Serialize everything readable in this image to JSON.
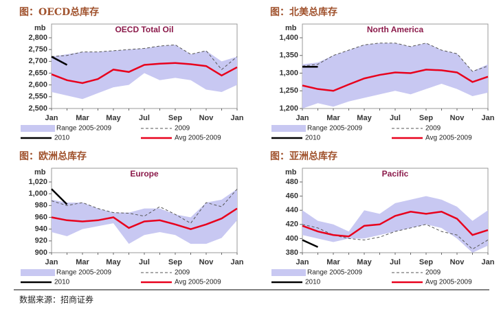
{
  "chart_data": [
    {
      "type": "line",
      "caption": "图：OECD总库存",
      "title": "OECD Total Oil",
      "ylabel": "mb",
      "categories": [
        "Jan",
        null,
        "Mar",
        null,
        "May",
        null,
        "Jul",
        null,
        "Sep",
        null,
        "Nov",
        null,
        "Jan"
      ],
      "ylim": [
        2500,
        2800
      ],
      "yticks": [
        {
          "value": 2500,
          "label": "2,500"
        },
        {
          "value": 2550,
          "label": "2,550"
        },
        {
          "value": 2600,
          "label": "2,600"
        },
        {
          "value": 2650,
          "label": "2,650"
        },
        {
          "value": 2700,
          "label": "2,700"
        },
        {
          "value": 2750,
          "label": "2,750"
        },
        {
          "value": 2800,
          "label": "2,800"
        }
      ],
      "range": {
        "name": "Range 2005-2009",
        "color": "#c8c8f2",
        "high": [
          2720,
          2730,
          2740,
          2740,
          2745,
          2750,
          2755,
          2765,
          2770,
          2730,
          2745,
          2700,
          2720
        ],
        "low": [
          2570,
          2555,
          2540,
          2565,
          2590,
          2600,
          2650,
          2620,
          2630,
          2620,
          2580,
          2570,
          2600
        ]
      },
      "series": [
        {
          "name": "2009",
          "color": "#555555",
          "style": "dashed",
          "values": [
            2720,
            2725,
            2740,
            2740,
            2745,
            2750,
            2755,
            2765,
            2770,
            2730,
            2745,
            2665,
            2720
          ]
        },
        {
          "name": "2010",
          "color": "#000000",
          "style": "solid",
          "values": [
            2720,
            2685,
            null,
            null,
            null,
            null,
            null,
            null,
            null,
            null,
            null,
            null,
            null
          ]
        },
        {
          "name": "Avg 2005-2009",
          "color": "#e8001c",
          "style": "solid",
          "values": [
            2645,
            2620,
            2608,
            2625,
            2665,
            2655,
            2685,
            2690,
            2693,
            2688,
            2680,
            2640,
            2675
          ]
        }
      ]
    },
    {
      "type": "line",
      "caption": "图：北美总库存",
      "title": "North America",
      "ylabel": "mb",
      "categories": [
        "Jan",
        null,
        "Mar",
        null,
        "May",
        null,
        "Jul",
        null,
        "Sep",
        null,
        "Nov",
        null,
        "Jan"
      ],
      "ylim": [
        1200,
        1400
      ],
      "yticks": [
        {
          "value": 1200,
          "label": "1,200"
        },
        {
          "value": 1250,
          "label": "1,250"
        },
        {
          "value": 1300,
          "label": "1,300"
        },
        {
          "value": 1350,
          "label": "1,350"
        },
        {
          "value": 1400,
          "label": "1,400"
        }
      ],
      "range": {
        "name": "Range 2005-2009",
        "color": "#c8c8f2",
        "high": [
          1325,
          1330,
          1350,
          1365,
          1380,
          1385,
          1385,
          1375,
          1385,
          1365,
          1355,
          1305,
          1325
        ],
        "low": [
          1200,
          1215,
          1205,
          1220,
          1230,
          1240,
          1250,
          1240,
          1255,
          1270,
          1255,
          1235,
          1245
        ]
      },
      "series": [
        {
          "name": "2009",
          "color": "#555555",
          "style": "dashed",
          "values": [
            1320,
            1325,
            1350,
            1365,
            1380,
            1385,
            1385,
            1375,
            1385,
            1365,
            1355,
            1305,
            1320
          ]
        },
        {
          "name": "2010",
          "color": "#000000",
          "style": "solid",
          "values": [
            1318,
            1318,
            null,
            null,
            null,
            null,
            null,
            null,
            null,
            null,
            null,
            null,
            null
          ]
        },
        {
          "name": "Avg 2005-2009",
          "color": "#e8001c",
          "style": "solid",
          "values": [
            1265,
            1255,
            1250,
            1268,
            1285,
            1295,
            1302,
            1300,
            1310,
            1308,
            1302,
            1275,
            1290
          ]
        }
      ]
    },
    {
      "type": "line",
      "caption": "图：欧洲总库存",
      "title": "Europe",
      "ylabel": "mb",
      "categories": [
        "Jan",
        null,
        "Mar",
        null,
        "May",
        null,
        "Jul",
        null,
        "Sep",
        null,
        "Nov",
        null,
        "Jan"
      ],
      "ylim": [
        900,
        1020
      ],
      "yticks": [
        900,
        920,
        940,
        960,
        980,
        {
          "value": 1000,
          "label": "1,000"
        },
        {
          "value": 1020,
          "label": "1,020"
        }
      ],
      "range": {
        "name": "Range 2005-2009",
        "color": "#c8c8f2",
        "high": [
          990,
          985,
          985,
          975,
          968,
          968,
          975,
          975,
          965,
          960,
          985,
          990,
          1008
        ],
        "low": [
          935,
          928,
          940,
          945,
          950,
          915,
          930,
          935,
          930,
          915,
          915,
          925,
          955
        ]
      },
      "series": [
        {
          "name": "2009",
          "color": "#555555",
          "style": "dashed",
          "values": [
            988,
            980,
            985,
            975,
            968,
            967,
            962,
            978,
            965,
            950,
            985,
            978,
            1008
          ]
        },
        {
          "name": "2010",
          "color": "#000000",
          "style": "solid",
          "values": [
            1008,
            982,
            null,
            null,
            null,
            null,
            null,
            null,
            null,
            null,
            null,
            null,
            null
          ]
        },
        {
          "name": "Avg 2005-2009",
          "color": "#e8001c",
          "style": "solid",
          "values": [
            960,
            955,
            953,
            955,
            960,
            942,
            953,
            955,
            948,
            940,
            948,
            958,
            975
          ]
        }
      ]
    },
    {
      "type": "line",
      "caption": "图：亚洲总库存",
      "title": "Pacific",
      "ylabel": "mb",
      "categories": [
        "Jan",
        null,
        "Mar",
        null,
        "May",
        null,
        "Jul",
        null,
        "Sep",
        null,
        "Nov",
        null,
        "Jan"
      ],
      "ylim": [
        380,
        480
      ],
      "yticks": [
        380,
        400,
        420,
        440,
        460,
        480
      ],
      "range": {
        "name": "Range 2005-2009",
        "color": "#c8c8f2",
        "high": [
          440,
          425,
          420,
          410,
          440,
          435,
          450,
          455,
          460,
          455,
          445,
          425,
          440
        ],
        "low": [
          405,
          400,
          395,
          400,
          400,
          405,
          410,
          415,
          420,
          415,
          400,
          380,
          390
        ]
      },
      "series": [
        {
          "name": "2009",
          "color": "#555555",
          "style": "dashed",
          "values": [
            420,
            415,
            405,
            400,
            398,
            402,
            410,
            415,
            420,
            410,
            405,
            385,
            398
          ]
        },
        {
          "name": "2010",
          "color": "#000000",
          "style": "solid",
          "values": [
            398,
            388,
            null,
            null,
            null,
            null,
            null,
            null,
            null,
            null,
            null,
            null,
            null
          ]
        },
        {
          "name": "Avg 2005-2009",
          "color": "#e8001c",
          "style": "solid",
          "values": [
            418,
            410,
            405,
            403,
            418,
            420,
            432,
            438,
            435,
            438,
            428,
            405,
            412
          ]
        }
      ]
    }
  ],
  "source": "数据来源：招商证券"
}
